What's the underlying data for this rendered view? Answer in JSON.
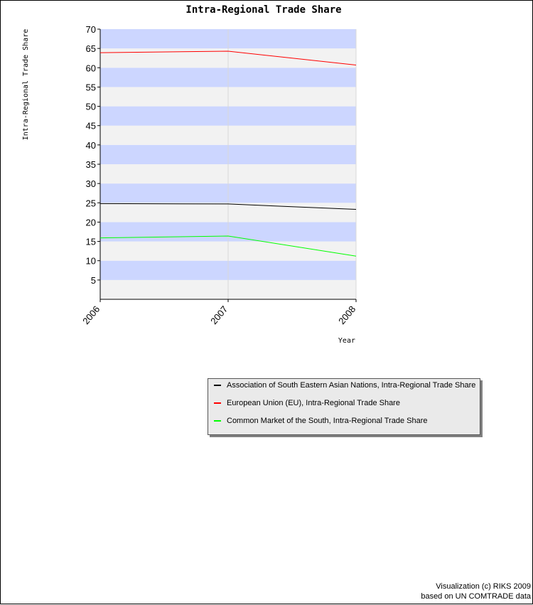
{
  "chart_data": {
    "type": "line",
    "title": "Intra-Regional Trade Share",
    "xlabel": "Year",
    "ylabel": "Intra-Regional Trade Share",
    "x": [
      "2006",
      "2007",
      "2008"
    ],
    "ylim": [
      0,
      70
    ],
    "yticks": [
      5,
      10,
      15,
      20,
      25,
      30,
      35,
      40,
      45,
      50,
      55,
      60,
      65,
      70
    ],
    "series": [
      {
        "name": "Association of South Eastern Asian Nations, Intra-Regional Trade Share",
        "color": "#000000",
        "values": [
          24.8,
          24.7,
          23.3
        ]
      },
      {
        "name": "European Union (EU), Intra-Regional Trade Share",
        "color": "#ff0000",
        "values": [
          63.9,
          64.3,
          60.7
        ]
      },
      {
        "name": "Common Market of the South, Intra-Regional Trade Share",
        "color": "#00ff00",
        "values": [
          15.9,
          16.4,
          11.2
        ]
      }
    ],
    "band_colors": [
      "#ccd6ff",
      "#f2f2f2"
    ],
    "legend_position": "bottom-right"
  },
  "footer": {
    "line1": "Visualization (c) RIKS 2009",
    "line2": "based on UN COMTRADE data"
  }
}
